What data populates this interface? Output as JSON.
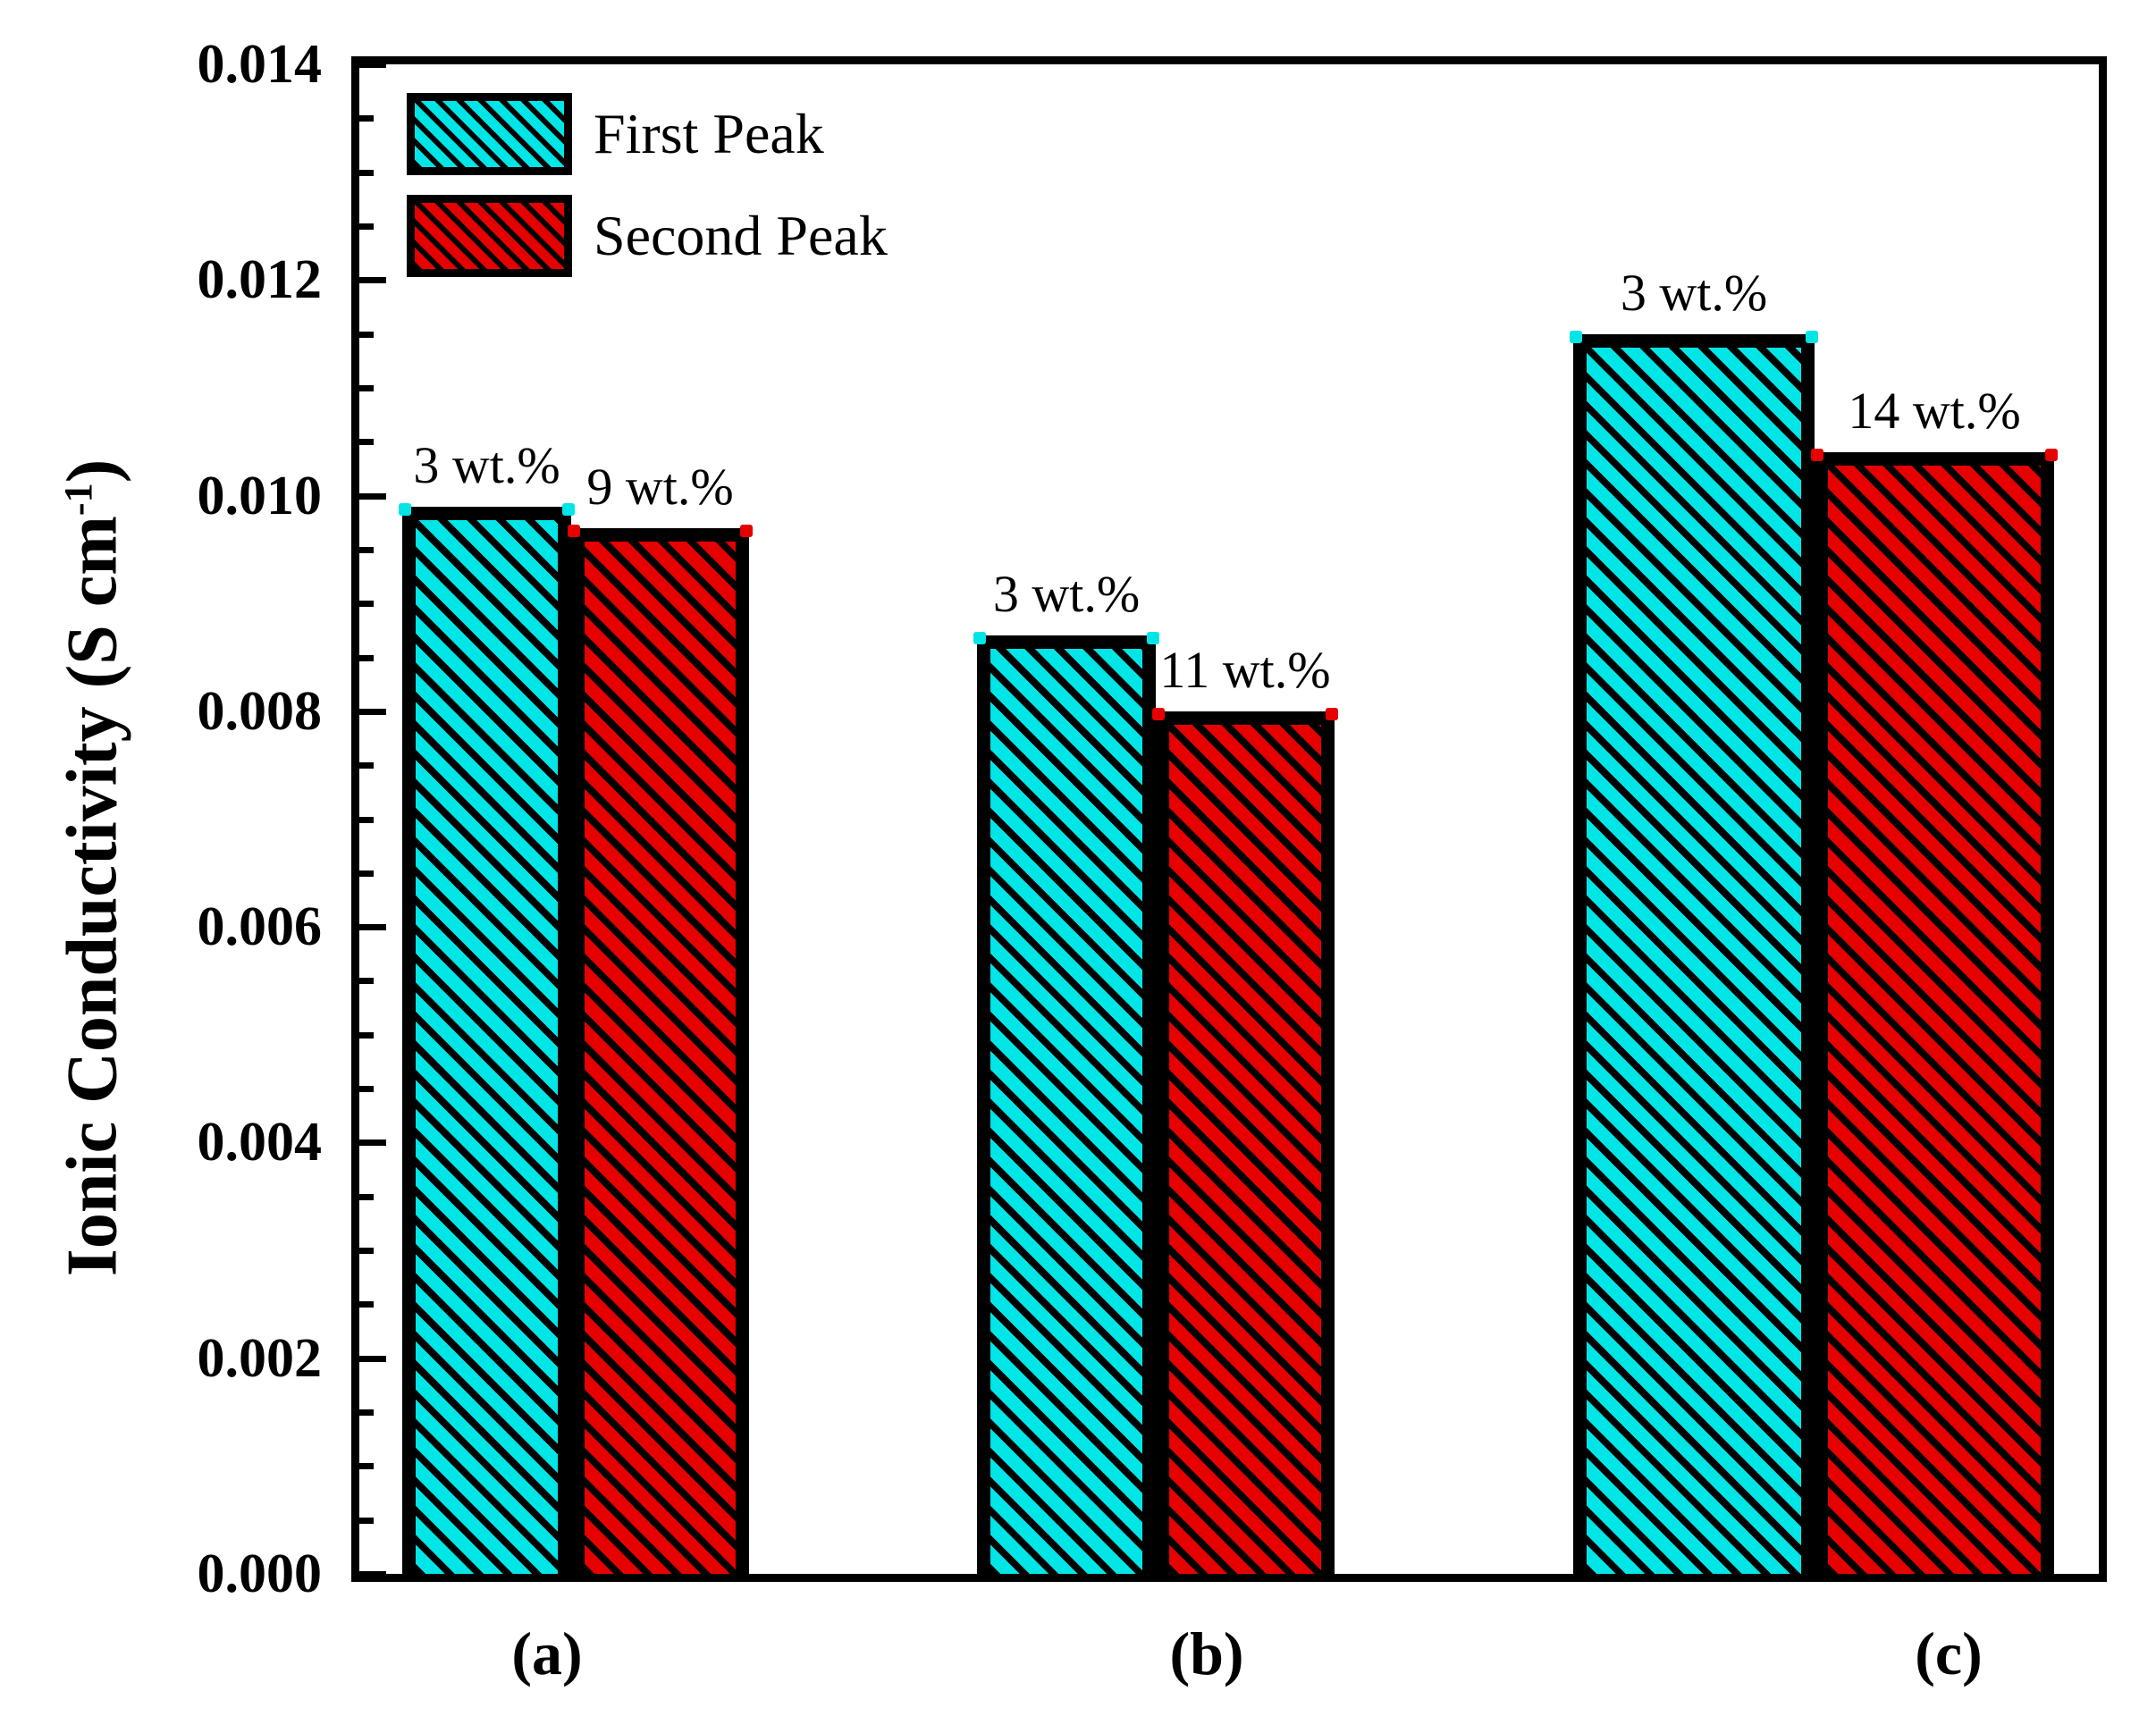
{
  "chart_data": {
    "type": "bar",
    "title": "",
    "xlabel": "",
    "ylabel": "Ionic Conductivity (S cm⁻¹)",
    "ylim": [
      0,
      0.014
    ],
    "yticks": [
      "0.000",
      "0.002",
      "0.004",
      "0.006",
      "0.008",
      "0.010",
      "0.012",
      "0.014"
    ],
    "minor_tick_step": 0.0005,
    "grid": false,
    "legend_position": "top-left-inside",
    "hatch": "black-diagonal-stripes",
    "categories": [
      "(a)",
      "(b)",
      "(c)"
    ],
    "series": [
      {
        "name": "First Peak",
        "color": "#00e6e6",
        "values": [
          0.0099,
          0.0087,
          0.0115
        ],
        "point_labels": [
          "3 wt.%",
          "3 wt.%",
          "3 wt.%"
        ]
      },
      {
        "name": "Second Peak",
        "color": "#e60000",
        "values": [
          0.0097,
          0.008,
          0.0104
        ],
        "point_labels": [
          "9 wt.%",
          "11 wt.%",
          "14 wt.%"
        ]
      }
    ]
  },
  "axis": {
    "ylabel_text": "Ionic Conductivity (S cm",
    "ylabel_sup": "-1",
    "ylabel_close": ")"
  },
  "legend": {
    "items": [
      {
        "label": "First Peak",
        "swatch": "cyan-hatch-swatch"
      },
      {
        "label": "Second Peak",
        "swatch": "red-hatch-swatch"
      }
    ]
  }
}
